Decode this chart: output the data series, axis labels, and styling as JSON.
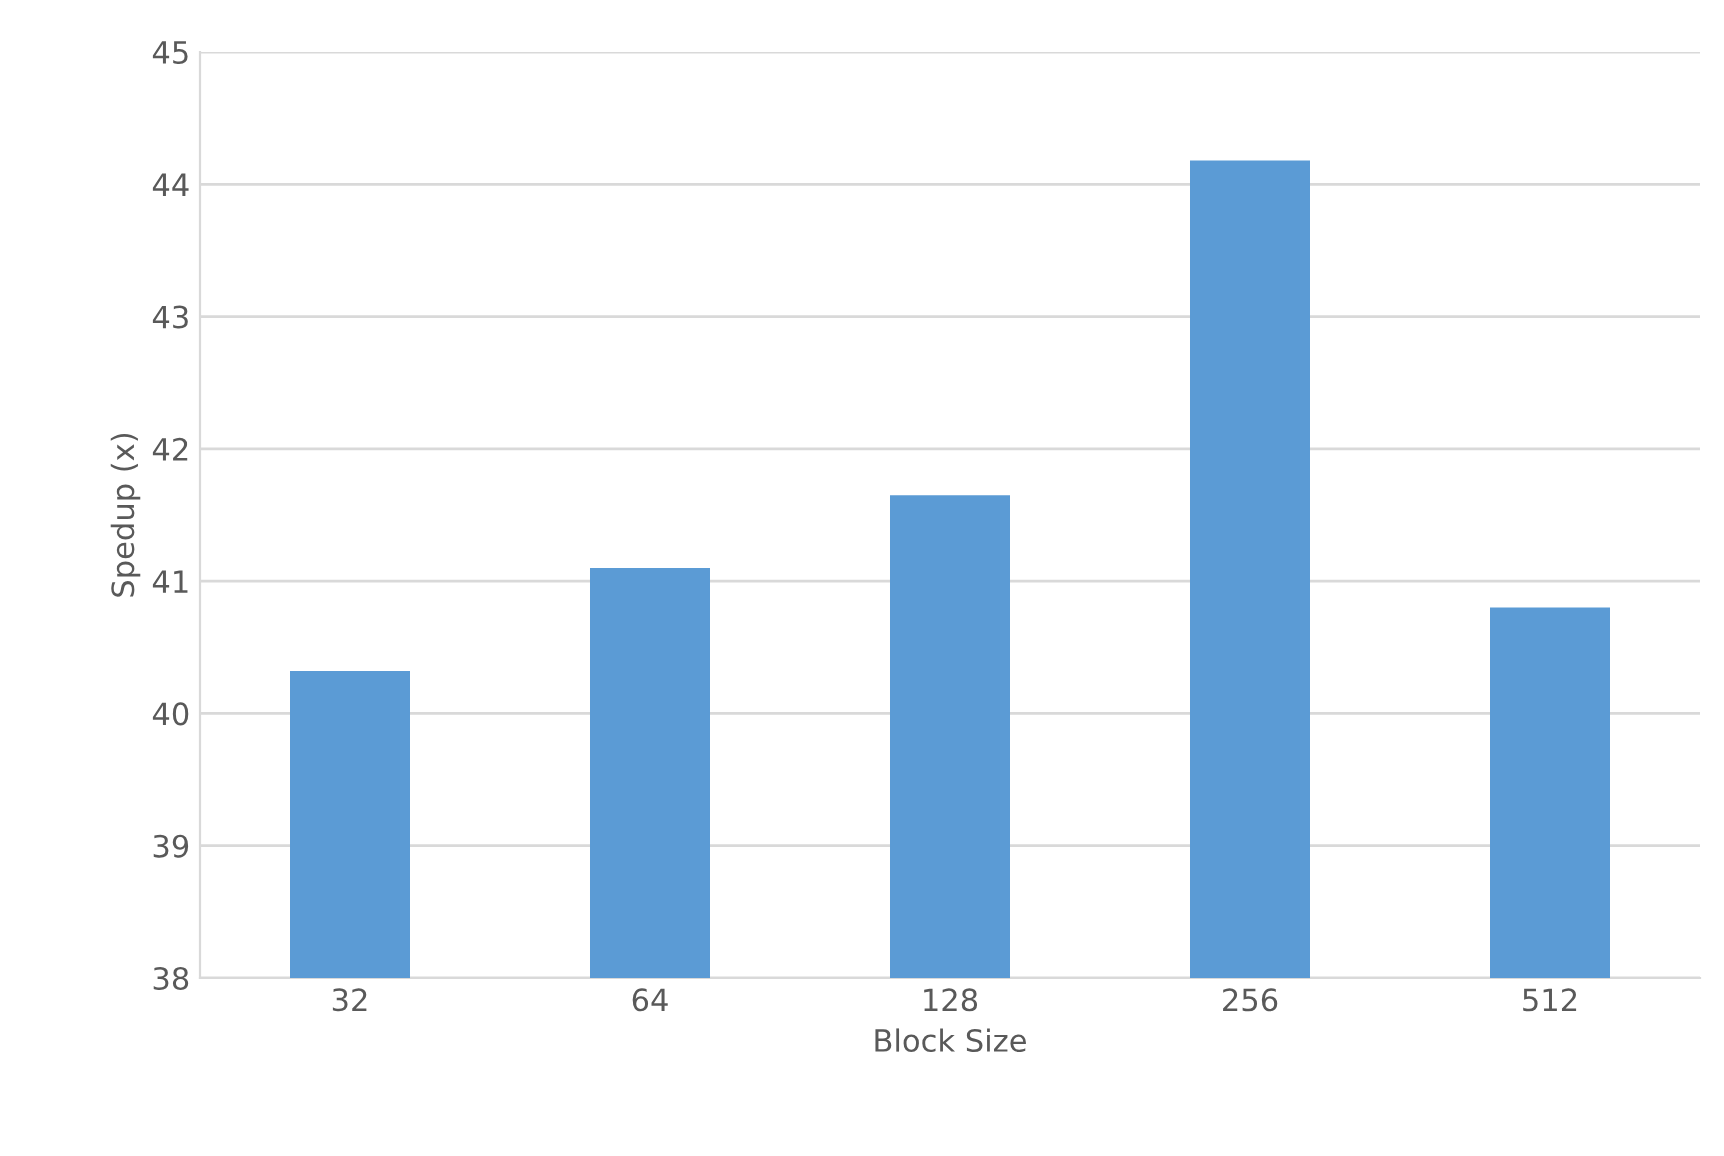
{
  "chart_data": {
    "type": "bar",
    "xlabel": "Block Size",
    "ylabel": "Spedup (x)",
    "categories": [
      "32",
      "64",
      "128",
      "256",
      "512"
    ],
    "values": [
      40.32,
      41.1,
      41.65,
      44.18,
      40.8
    ],
    "color": "#5b9bd5",
    "ylim": [
      38,
      45
    ],
    "yticks": [
      38,
      39,
      40,
      41,
      42,
      43,
      44,
      45
    ],
    "grid": "y"
  }
}
